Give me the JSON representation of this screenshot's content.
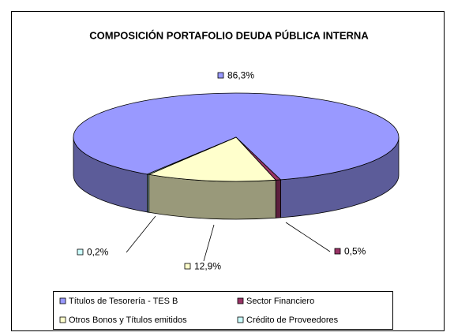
{
  "chart_data": {
    "type": "pie",
    "title": "COMPOSICIÓN PORTAFOLIO DEUDA PÚBLICA INTERNA",
    "categories": [
      "Títulos de Tesorería - TES B",
      "Sector Financiero",
      "Otros Bonos y Títulos emitidos",
      "Crédito de Proveedores"
    ],
    "values": [
      86.3,
      0.5,
      12.9,
      0.2
    ],
    "value_labels": [
      "86,3%",
      "0,5%",
      "12,9%",
      "0,2%"
    ],
    "colors": [
      "#9999ff",
      "#993366",
      "#ffffcc",
      "#ccffff"
    ],
    "legend": "bottom",
    "three_d": true
  }
}
